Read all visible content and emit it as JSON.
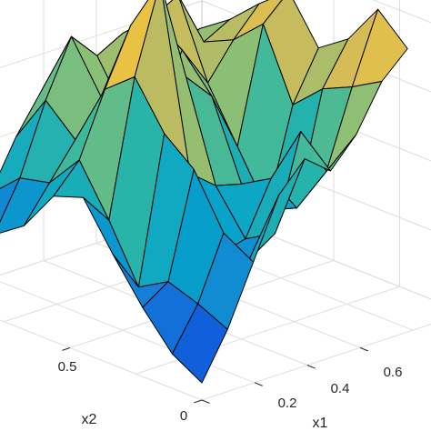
{
  "chart_data": {
    "type": "surface",
    "title": "",
    "xlabel": "x1",
    "ylabel": "x2",
    "zlabel": "",
    "x_ticks": [
      "0",
      "0.2",
      "0.4",
      "0.6"
    ],
    "y_ticks": [
      "0",
      "0.5"
    ],
    "grid": true,
    "colormap": "parula",
    "colormap_colors": [
      "#352a87",
      "#0f5cdd",
      "#1481d6",
      "#06a4ca",
      "#2eb7a4",
      "#87bf77",
      "#d1bb59",
      "#fec832",
      "#f9fb0e"
    ],
    "edge_color": "#000000",
    "background": "#ffffff",
    "x": [
      0,
      0.1,
      0.2,
      0.3,
      0.4,
      0.5,
      0.6,
      0.7,
      0.8
    ],
    "y": [
      0,
      0.1,
      0.2,
      0.3,
      0.4,
      0.5,
      0.6,
      0.7,
      0.8
    ],
    "z": [
      [
        0.05,
        0.18,
        0.35,
        0.52,
        0.6,
        0.54,
        0.62,
        0.75,
        0.82
      ],
      [
        0.1,
        0.22,
        0.4,
        0.3,
        0.35,
        0.62,
        0.48,
        0.7,
        0.9
      ],
      [
        0.2,
        0.25,
        0.55,
        0.28,
        0.3,
        0.45,
        0.34,
        0.66,
        0.78
      ],
      [
        0.32,
        0.2,
        0.62,
        0.48,
        0.42,
        0.4,
        0.3,
        0.58,
        0.72
      ],
      [
        0.45,
        0.36,
        0.75,
        1.0,
        0.7,
        0.62,
        0.45,
        0.78,
        0.85
      ],
      [
        0.42,
        0.5,
        0.68,
        0.84,
        0.55,
        0.72,
        0.6,
        0.7,
        0.78
      ],
      [
        0.3,
        0.4,
        0.5,
        0.6,
        0.52,
        0.78,
        0.82,
        0.66,
        0.7
      ],
      [
        0.24,
        0.38,
        0.58,
        0.74,
        0.66,
        0.7,
        0.62,
        0.6,
        0.64
      ],
      [
        0.18,
        0.3,
        0.44,
        0.55,
        0.48,
        0.46,
        0.42,
        0.5,
        0.56
      ]
    ]
  }
}
